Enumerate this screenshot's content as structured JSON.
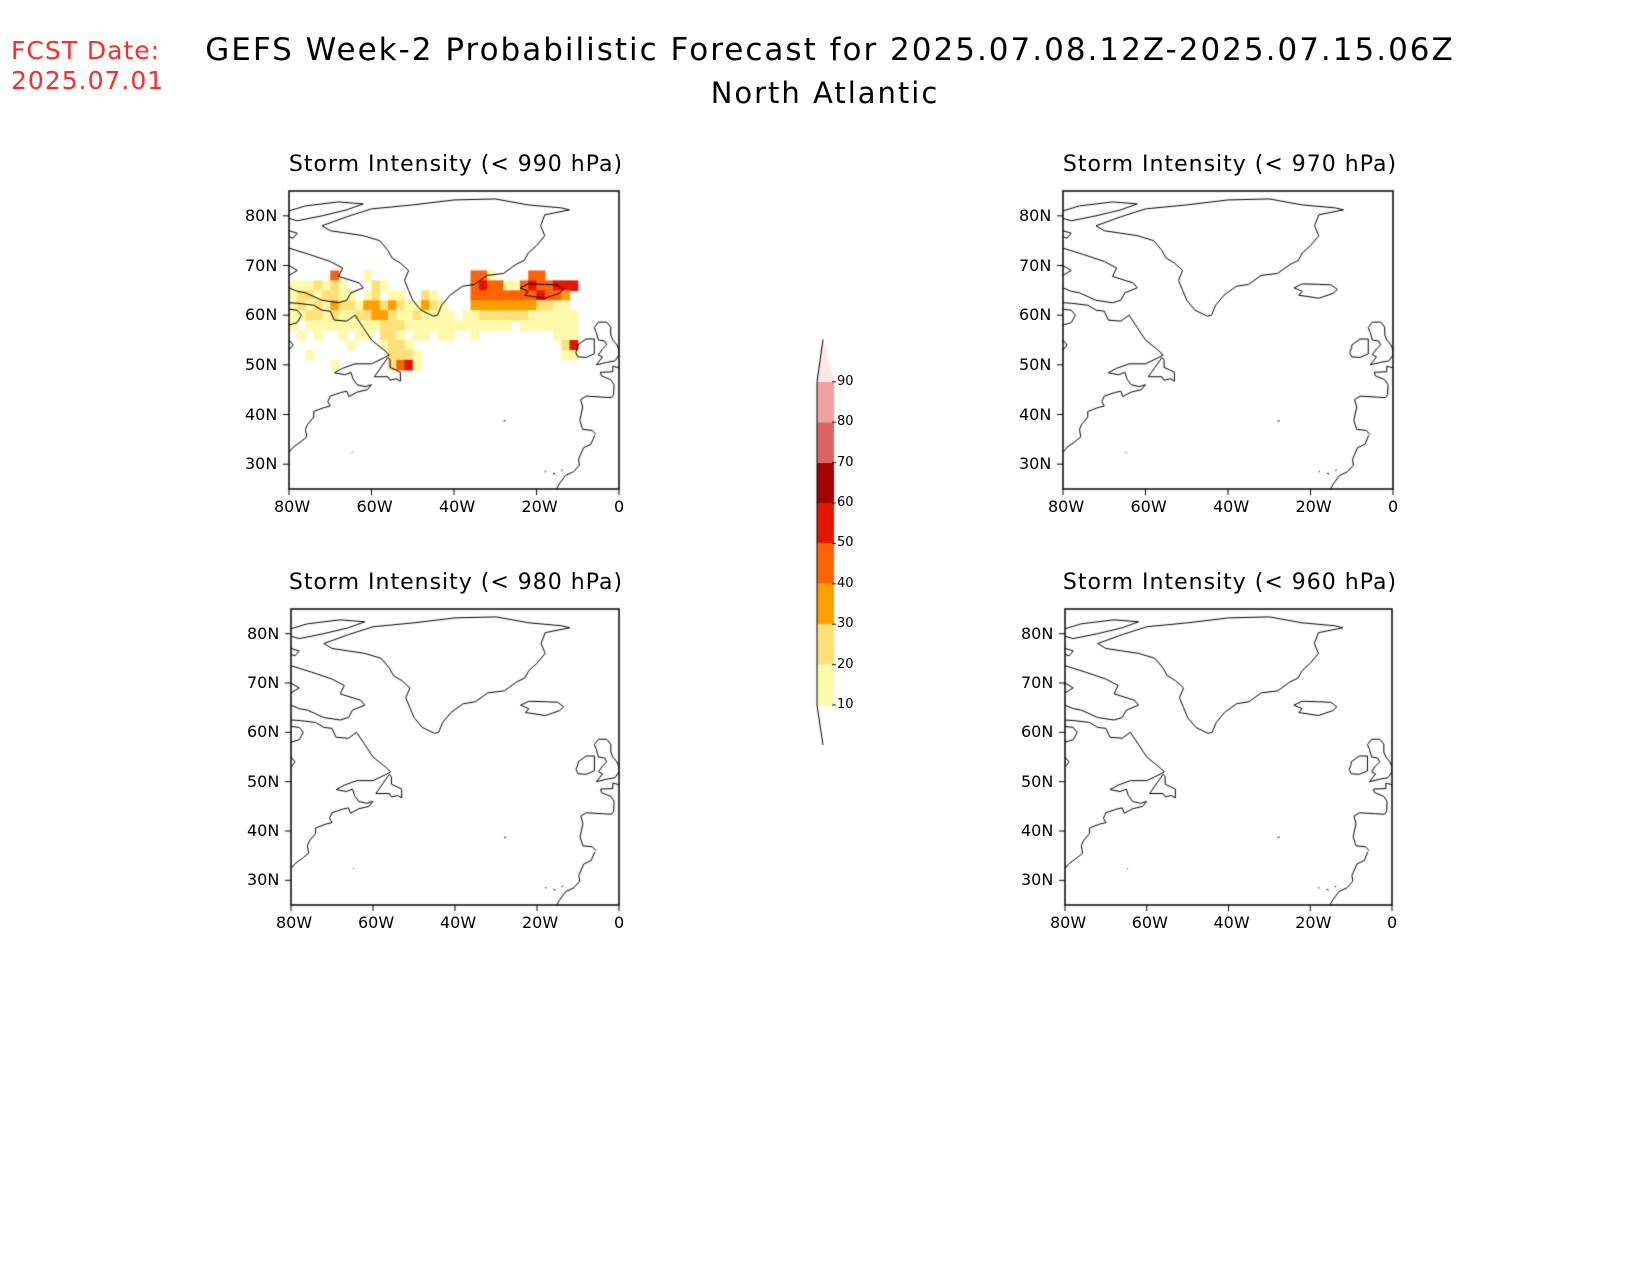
{
  "forecast_date": {
    "label": "FCST Date:",
    "value": "2025.07.01"
  },
  "title": "GEFS Week-2 Probabilistic Forecast for 2025.07.08.12Z-2025.07.15.06Z",
  "subtitle": "North Atlantic",
  "panels": [
    {
      "title": "Storm Intensity (< 990 hPa)",
      "has_data": true
    },
    {
      "title": "Storm Intensity (< 970 hPa)",
      "has_data": false
    },
    {
      "title": "Storm Intensity (< 980 hPa)",
      "has_data": false
    },
    {
      "title": "Storm Intensity (< 960 hPa)",
      "has_data": false
    }
  ],
  "lat_ticks": [
    "80N",
    "70N",
    "60N",
    "50N",
    "40N",
    "30N"
  ],
  "lon_ticks": [
    "80W",
    "60W",
    "40W",
    "20W",
    "0"
  ],
  "colorbar": {
    "levels": [
      "10",
      "20",
      "30",
      "40",
      "50",
      "60",
      "70",
      "80",
      "90"
    ],
    "colors": [
      "#fffaaa",
      "#ffe178",
      "#ffa000",
      "#ff6400",
      "#e61400",
      "#a50000",
      "#dc6464",
      "#f0a0a0",
      "#ffe6e6"
    ]
  },
  "probability_cells_990": [
    {
      "lon": -80,
      "lat": 66,
      "p": 15
    },
    {
      "lon": -78,
      "lat": 66,
      "p": 15
    },
    {
      "lon": -76,
      "lat": 66,
      "p": 15
    },
    {
      "lon": -74,
      "lat": 66,
      "p": 25
    },
    {
      "lon": -72,
      "lat": 66,
      "p": 15
    },
    {
      "lon": -70,
      "lat": 68,
      "p": 45
    },
    {
      "lon": -70,
      "lat": 66,
      "p": 25
    },
    {
      "lon": -68,
      "lat": 66,
      "p": 15
    },
    {
      "lon": -66,
      "lat": 64,
      "p": 15
    },
    {
      "lon": -80,
      "lat": 64,
      "p": 15
    },
    {
      "lon": -78,
      "lat": 64,
      "p": 25
    },
    {
      "lon": -76,
      "lat": 64,
      "p": 25
    },
    {
      "lon": -74,
      "lat": 64,
      "p": 15
    },
    {
      "lon": -72,
      "lat": 64,
      "p": 25
    },
    {
      "lon": -70,
      "lat": 64,
      "p": 25
    },
    {
      "lon": -68,
      "lat": 64,
      "p": 15
    },
    {
      "lon": -62,
      "lat": 68,
      "p": 15
    },
    {
      "lon": -60,
      "lat": 66,
      "p": 25
    },
    {
      "lon": -58,
      "lat": 66,
      "p": 15
    },
    {
      "lon": -62,
      "lat": 64,
      "p": 15
    },
    {
      "lon": -60,
      "lat": 64,
      "p": 25
    },
    {
      "lon": -56,
      "lat": 64,
      "p": 15
    },
    {
      "lon": -54,
      "lat": 64,
      "p": 15
    },
    {
      "lon": -48,
      "lat": 64,
      "p": 25
    },
    {
      "lon": -46,
      "lat": 64,
      "p": 15
    },
    {
      "lon": -80,
      "lat": 62,
      "p": 15
    },
    {
      "lon": -78,
      "lat": 62,
      "p": 25
    },
    {
      "lon": -76,
      "lat": 62,
      "p": 15
    },
    {
      "lon": -74,
      "lat": 62,
      "p": 25
    },
    {
      "lon": -72,
      "lat": 62,
      "p": 15
    },
    {
      "lon": -70,
      "lat": 62,
      "p": 35
    },
    {
      "lon": -68,
      "lat": 62,
      "p": 25
    },
    {
      "lon": -66,
      "lat": 62,
      "p": 25
    },
    {
      "lon": -64,
      "lat": 62,
      "p": 15
    },
    {
      "lon": -62,
      "lat": 62,
      "p": 35
    },
    {
      "lon": -60,
      "lat": 62,
      "p": 35
    },
    {
      "lon": -58,
      "lat": 62,
      "p": 25
    },
    {
      "lon": -56,
      "lat": 62,
      "p": 35
    },
    {
      "lon": -54,
      "lat": 62,
      "p": 25
    },
    {
      "lon": -52,
      "lat": 62,
      "p": 15
    },
    {
      "lon": -50,
      "lat": 62,
      "p": 15
    },
    {
      "lon": -48,
      "lat": 62,
      "p": 35
    },
    {
      "lon": -46,
      "lat": 62,
      "p": 25
    },
    {
      "lon": -44,
      "lat": 62,
      "p": 15
    },
    {
      "lon": -80,
      "lat": 60,
      "p": 15
    },
    {
      "lon": -78,
      "lat": 60,
      "p": 15
    },
    {
      "lon": -76,
      "lat": 60,
      "p": 25
    },
    {
      "lon": -74,
      "lat": 60,
      "p": 25
    },
    {
      "lon": -72,
      "lat": 60,
      "p": 15
    },
    {
      "lon": -70,
      "lat": 60,
      "p": 25
    },
    {
      "lon": -68,
      "lat": 60,
      "p": 15
    },
    {
      "lon": -66,
      "lat": 60,
      "p": 15
    },
    {
      "lon": -64,
      "lat": 60,
      "p": 25
    },
    {
      "lon": -62,
      "lat": 60,
      "p": 25
    },
    {
      "lon": -60,
      "lat": 60,
      "p": 35
    },
    {
      "lon": -58,
      "lat": 60,
      "p": 35
    },
    {
      "lon": -56,
      "lat": 60,
      "p": 25
    },
    {
      "lon": -54,
      "lat": 60,
      "p": 15
    },
    {
      "lon": -52,
      "lat": 60,
      "p": 15
    },
    {
      "lon": -50,
      "lat": 60,
      "p": 25
    },
    {
      "lon": -48,
      "lat": 60,
      "p": 15
    },
    {
      "lon": -46,
      "lat": 60,
      "p": 15
    },
    {
      "lon": -44,
      "lat": 60,
      "p": 15
    },
    {
      "lon": -42,
      "lat": 60,
      "p": 15
    },
    {
      "lon": -80,
      "lat": 58,
      "p": 15
    },
    {
      "lon": -76,
      "lat": 58,
      "p": 15
    },
    {
      "lon": -74,
      "lat": 58,
      "p": 15
    },
    {
      "lon": -72,
      "lat": 58,
      "p": 15
    },
    {
      "lon": -70,
      "lat": 58,
      "p": 15
    },
    {
      "lon": -68,
      "lat": 58,
      "p": 15
    },
    {
      "lon": -66,
      "lat": 58,
      "p": 15
    },
    {
      "lon": -64,
      "lat": 58,
      "p": 15
    },
    {
      "lon": -62,
      "lat": 58,
      "p": 15
    },
    {
      "lon": -60,
      "lat": 58,
      "p": 15
    },
    {
      "lon": -58,
      "lat": 58,
      "p": 25
    },
    {
      "lon": -56,
      "lat": 58,
      "p": 25
    },
    {
      "lon": -54,
      "lat": 58,
      "p": 25
    },
    {
      "lon": -52,
      "lat": 58,
      "p": 15
    },
    {
      "lon": -50,
      "lat": 58,
      "p": 15
    },
    {
      "lon": -48,
      "lat": 58,
      "p": 15
    },
    {
      "lon": -46,
      "lat": 58,
      "p": 15
    },
    {
      "lon": -44,
      "lat": 58,
      "p": 15
    },
    {
      "lon": -42,
      "lat": 58,
      "p": 15
    },
    {
      "lon": -40,
      "lat": 58,
      "p": 15
    },
    {
      "lon": -78,
      "lat": 56,
      "p": 15
    },
    {
      "lon": -74,
      "lat": 56,
      "p": 15
    },
    {
      "lon": -68,
      "lat": 56,
      "p": 15
    },
    {
      "lon": -64,
      "lat": 56,
      "p": 15
    },
    {
      "lon": -62,
      "lat": 56,
      "p": 15
    },
    {
      "lon": -58,
      "lat": 56,
      "p": 25
    },
    {
      "lon": -56,
      "lat": 56,
      "p": 25
    },
    {
      "lon": -54,
      "lat": 56,
      "p": 15
    },
    {
      "lon": -50,
      "lat": 56,
      "p": 15
    },
    {
      "lon": -48,
      "lat": 56,
      "p": 15
    },
    {
      "lon": -44,
      "lat": 56,
      "p": 15
    },
    {
      "lon": -42,
      "lat": 56,
      "p": 15
    },
    {
      "lon": -66,
      "lat": 54,
      "p": 15
    },
    {
      "lon": -58,
      "lat": 54,
      "p": 15
    },
    {
      "lon": -56,
      "lat": 54,
      "p": 25
    },
    {
      "lon": -54,
      "lat": 54,
      "p": 25
    },
    {
      "lon": -52,
      "lat": 54,
      "p": 15
    },
    {
      "lon": -56,
      "lat": 52,
      "p": 25
    },
    {
      "lon": -54,
      "lat": 52,
      "p": 25
    },
    {
      "lon": -52,
      "lat": 52,
      "p": 25
    },
    {
      "lon": -50,
      "lat": 52,
      "p": 15
    },
    {
      "lon": -56,
      "lat": 50,
      "p": 25
    },
    {
      "lon": -54,
      "lat": 50,
      "p": 45
    },
    {
      "lon": -52,
      "lat": 50,
      "p": 55
    },
    {
      "lon": -50,
      "lat": 50,
      "p": 15
    },
    {
      "lon": -76,
      "lat": 52,
      "p": 15
    },
    {
      "lon": -70,
      "lat": 50,
      "p": 15
    },
    {
      "lon": -36,
      "lat": 68,
      "p": 45
    },
    {
      "lon": -34,
      "lat": 68,
      "p": 45
    },
    {
      "lon": -32,
      "lat": 68,
      "p": 15
    },
    {
      "lon": -22,
      "lat": 68,
      "p": 45
    },
    {
      "lon": -20,
      "lat": 68,
      "p": 45
    },
    {
      "lon": -36,
      "lat": 66,
      "p": 45
    },
    {
      "lon": -34,
      "lat": 66,
      "p": 55
    },
    {
      "lon": -32,
      "lat": 66,
      "p": 45
    },
    {
      "lon": -30,
      "lat": 66,
      "p": 45
    },
    {
      "lon": -28,
      "lat": 66,
      "p": 15
    },
    {
      "lon": -26,
      "lat": 66,
      "p": 15
    },
    {
      "lon": -24,
      "lat": 66,
      "p": 45
    },
    {
      "lon": -22,
      "lat": 66,
      "p": 55
    },
    {
      "lon": -20,
      "lat": 66,
      "p": 45
    },
    {
      "lon": -18,
      "lat": 66,
      "p": 45
    },
    {
      "lon": -16,
      "lat": 66,
      "p": 55
    },
    {
      "lon": -14,
      "lat": 66,
      "p": 55
    },
    {
      "lon": -12,
      "lat": 66,
      "p": 55
    },
    {
      "lon": -36,
      "lat": 64,
      "p": 45
    },
    {
      "lon": -34,
      "lat": 64,
      "p": 45
    },
    {
      "lon": -32,
      "lat": 64,
      "p": 45
    },
    {
      "lon": -30,
      "lat": 64,
      "p": 45
    },
    {
      "lon": -28,
      "lat": 64,
      "p": 45
    },
    {
      "lon": -26,
      "lat": 64,
      "p": 45
    },
    {
      "lon": -24,
      "lat": 64,
      "p": 45
    },
    {
      "lon": -22,
      "lat": 64,
      "p": 45
    },
    {
      "lon": -20,
      "lat": 64,
      "p": 55
    },
    {
      "lon": -18,
      "lat": 64,
      "p": 45
    },
    {
      "lon": -16,
      "lat": 64,
      "p": 45
    },
    {
      "lon": -14,
      "lat": 64,
      "p": 35
    },
    {
      "lon": -36,
      "lat": 62,
      "p": 35
    },
    {
      "lon": -34,
      "lat": 62,
      "p": 35
    },
    {
      "lon": -32,
      "lat": 62,
      "p": 35
    },
    {
      "lon": -30,
      "lat": 62,
      "p": 35
    },
    {
      "lon": -28,
      "lat": 62,
      "p": 35
    },
    {
      "lon": -26,
      "lat": 62,
      "p": 35
    },
    {
      "lon": -24,
      "lat": 62,
      "p": 35
    },
    {
      "lon": -22,
      "lat": 62,
      "p": 35
    },
    {
      "lon": -20,
      "lat": 62,
      "p": 25
    },
    {
      "lon": -18,
      "lat": 62,
      "p": 25
    },
    {
      "lon": -16,
      "lat": 62,
      "p": 15
    },
    {
      "lon": -14,
      "lat": 62,
      "p": 15
    },
    {
      "lon": -38,
      "lat": 60,
      "p": 15
    },
    {
      "lon": -36,
      "lat": 60,
      "p": 15
    },
    {
      "lon": -34,
      "lat": 60,
      "p": 25
    },
    {
      "lon": -32,
      "lat": 60,
      "p": 25
    },
    {
      "lon": -30,
      "lat": 60,
      "p": 25
    },
    {
      "lon": -28,
      "lat": 60,
      "p": 25
    },
    {
      "lon": -26,
      "lat": 60,
      "p": 25
    },
    {
      "lon": -24,
      "lat": 60,
      "p": 25
    },
    {
      "lon": -22,
      "lat": 60,
      "p": 15
    },
    {
      "lon": -20,
      "lat": 60,
      "p": 15
    },
    {
      "lon": -18,
      "lat": 60,
      "p": 15
    },
    {
      "lon": -16,
      "lat": 60,
      "p": 15
    },
    {
      "lon": -14,
      "lat": 60,
      "p": 15
    },
    {
      "lon": -12,
      "lat": 60,
      "p": 15
    },
    {
      "lon": -38,
      "lat": 58,
      "p": 15
    },
    {
      "lon": -36,
      "lat": 58,
      "p": 15
    },
    {
      "lon": -34,
      "lat": 58,
      "p": 15
    },
    {
      "lon": -32,
      "lat": 58,
      "p": 15
    },
    {
      "lon": -30,
      "lat": 58,
      "p": 15
    },
    {
      "lon": -28,
      "lat": 58,
      "p": 15
    },
    {
      "lon": -24,
      "lat": 58,
      "p": 15
    },
    {
      "lon": -22,
      "lat": 58,
      "p": 15
    },
    {
      "lon": -20,
      "lat": 58,
      "p": 15
    },
    {
      "lon": -18,
      "lat": 58,
      "p": 15
    },
    {
      "lon": -16,
      "lat": 58,
      "p": 15
    },
    {
      "lon": -14,
      "lat": 58,
      "p": 15
    },
    {
      "lon": -12,
      "lat": 58,
      "p": 15
    },
    {
      "lon": -36,
      "lat": 56,
      "p": 15
    },
    {
      "lon": -16,
      "lat": 56,
      "p": 15
    },
    {
      "lon": -14,
      "lat": 56,
      "p": 15
    },
    {
      "lon": -12,
      "lat": 56,
      "p": 15
    },
    {
      "lon": -14,
      "lat": 54,
      "p": 25
    },
    {
      "lon": -12,
      "lat": 54,
      "p": 55
    },
    {
      "lon": -14,
      "lat": 52,
      "p": 15
    },
    {
      "lon": -12,
      "lat": 52,
      "p": 15
    }
  ]
}
